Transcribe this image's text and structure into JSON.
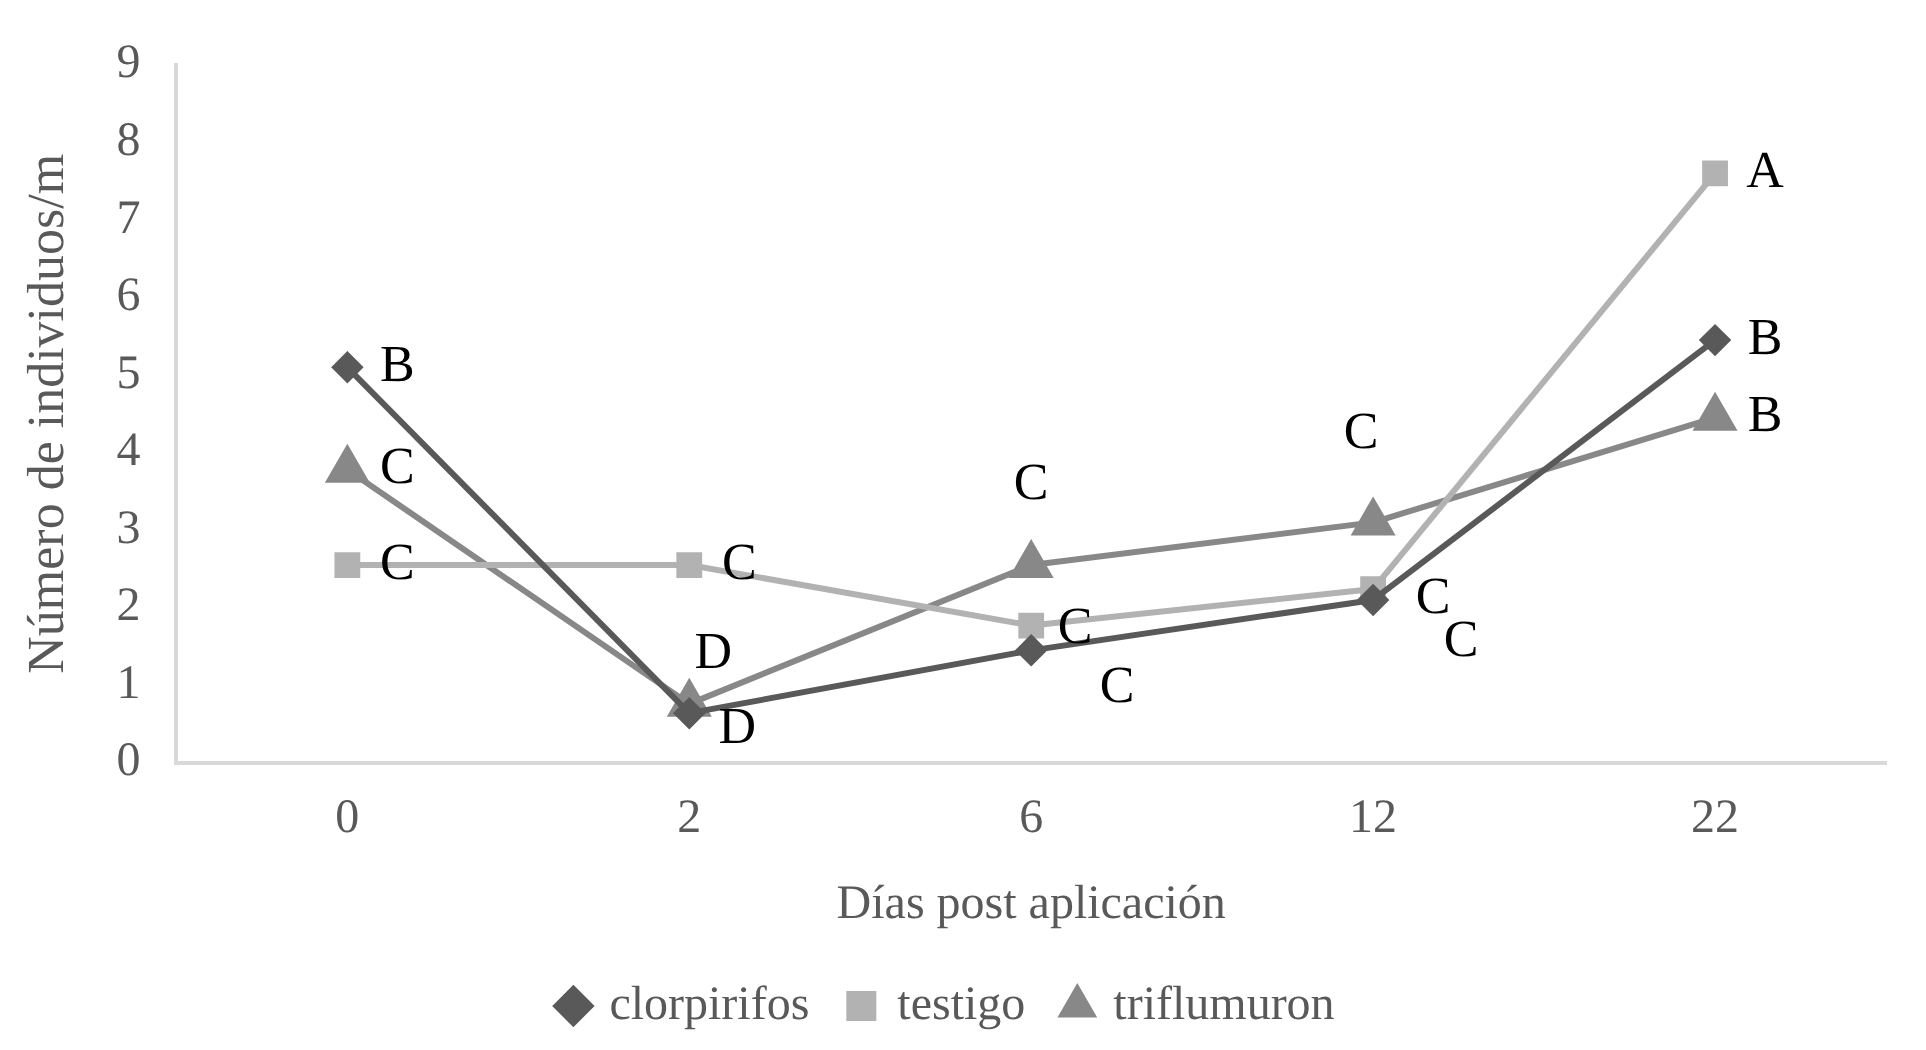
{
  "chart_data": {
    "type": "line",
    "xlabel": "Días post aplicación",
    "ylabel": "Número de individuos/m",
    "categories": [
      "0",
      "2",
      "6",
      "12",
      "22"
    ],
    "ylim": [
      0,
      9
    ],
    "yticks": [
      0,
      1,
      2,
      3,
      4,
      5,
      6,
      7,
      8,
      9
    ],
    "grid": false,
    "legend": "bottom",
    "series": [
      {
        "name": "clorpirifos",
        "color": "#595959",
        "marker": "diamond",
        "values": [
          5.1,
          0.64,
          1.45,
          2.1,
          5.45
        ]
      },
      {
        "name": "testigo",
        "color": "#b2b2b2",
        "marker": "square",
        "values": [
          2.55,
          2.55,
          1.77,
          2.24,
          7.6
        ]
      },
      {
        "name": "triflumuron",
        "color": "#888888",
        "marker": "triangle",
        "values": [
          3.78,
          0.76,
          2.55,
          3.1,
          4.45
        ]
      }
    ],
    "annotations": [
      {
        "text": "B",
        "x": "0",
        "y": 5.1
      },
      {
        "text": "D",
        "x": "2",
        "y": 0.64
      },
      {
        "text": "C",
        "x": "6",
        "y": 1.45
      },
      {
        "text": "C",
        "x": "12",
        "y": 2.1
      },
      {
        "text": "B",
        "x": "22",
        "y": 5.45
      },
      {
        "text": "C",
        "x": "0",
        "y": 2.55
      },
      {
        "text": "C",
        "x": "2",
        "y": 2.55
      },
      {
        "text": "C",
        "x": "6",
        "y": 1.77
      },
      {
        "text": "C",
        "x": "12",
        "y": 2.24
      },
      {
        "text": "A",
        "x": "22",
        "y": 7.6
      },
      {
        "text": "C",
        "x": "0",
        "y": 3.78
      },
      {
        "text": "D",
        "x": "2",
        "y": 0.76
      },
      {
        "text": "C",
        "x": "6",
        "y": 2.55
      },
      {
        "text": "C",
        "x": "12",
        "y": 3.1
      },
      {
        "text": "B",
        "x": "22",
        "y": 4.45
      }
    ]
  }
}
